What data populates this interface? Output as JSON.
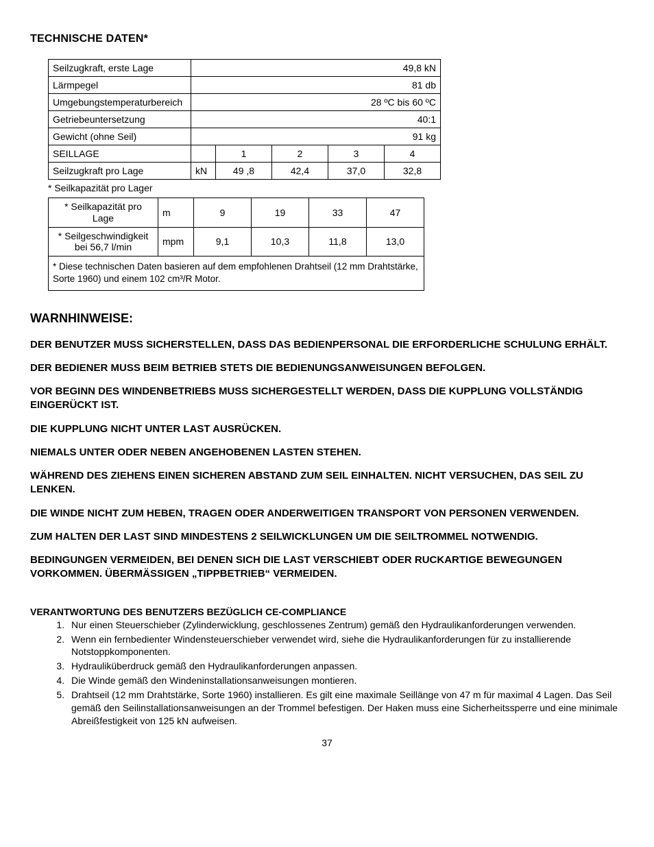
{
  "title": "TECHNISCHE DATEN*",
  "table1": {
    "rows_kv": [
      {
        "label": "Seilzugkraft, erste Lage",
        "value": "49,8 kN"
      },
      {
        "label": "Lärmpegel",
        "value": "81 db"
      },
      {
        "label": "Umgebungstemperaturbereich",
        "value": "28 ºC bis 60 ºC"
      },
      {
        "label": "Getriebeuntersetzung",
        "value": "40:1"
      },
      {
        "label": "Gewicht (ohne Seil)",
        "value": "91 kg"
      }
    ],
    "header_row": {
      "label": "SEILLAGE",
      "unit": "",
      "cols": [
        "1",
        "2",
        "3",
        "4"
      ]
    },
    "data_row": {
      "label": "Seilzugkraft pro Lage",
      "unit": "kN",
      "cols": [
        "49 ,8",
        "42,4",
        "37,0",
        "32,8"
      ]
    },
    "note": "*  Seilkapazität pro Lager",
    "col_widths": {
      "label": 208,
      "unit": 36,
      "num": 82
    }
  },
  "table2": {
    "rows": [
      {
        "label": "* Seilkapazität pro Lage",
        "unit": "m",
        "cols": [
          "9",
          "19",
          "33",
          "47"
        ]
      },
      {
        "label": "* Seilgeschwindigkeit bei 56,7 l/min",
        "unit": "mpm",
        "cols": [
          "9,1",
          "10,3",
          "11,8",
          "13,0"
        ]
      }
    ],
    "footnote": "* Diese technischen Daten basieren auf dem empfohlenen Drahtseil (12 mm Drahtstärke, Sorte 1960) und einem 102 cm³/R Motor.",
    "col_widths": {
      "label": 160,
      "unit": 52,
      "num": 84
    }
  },
  "warn_title": "WARNHINWEISE:",
  "warnings": [
    "DER BENUTZER MUSS SICHERSTELLEN, DASS DAS BEDIENPERSONAL DIE ERFORDERLICHE SCHULUNG ERHÄLT.",
    "DER BEDIENER MUSS BEIM BETRIEB STETS DIE BEDIENUNGSANWEISUNGEN BEFOLGEN.",
    "VOR BEGINN DES WINDENBETRIEBS MUSS SICHERGESTELLT WERDEN, DASS DIE KUPPLUNG VOLLSTÄNDIG EINGERÜCKT IST.",
    "DIE KUPPLUNG NICHT UNTER LAST AUSRÜCKEN.",
    "NIEMALS UNTER ODER NEBEN ANGEHOBENEN LASTEN STEHEN.",
    "WÄHREND DES ZIEHENS EINEN SICHEREN ABSTAND ZUM SEIL EINHALTEN. NICHT VERSUCHEN, DAS SEIL ZU LENKEN.",
    "DIE WINDE NICHT ZUM HEBEN, TRAGEN ODER ANDERWEITIGEN TRANSPORT VON PERSONEN VERWENDEN.",
    "ZUM HALTEN DER LAST SIND MINDESTENS 2 SEILWICKLUNGEN UM DIE SEILTROMMEL NOTWENDIG.",
    "BEDINGUNGEN VERMEIDEN, BEI DENEN SICH DIE LAST VERSCHIEBT ODER RUCKARTIGE BEWEGUNGEN VORKOMMEN. ÜBERMÄSSIGEN „TIPPBETRIEB“ VERMEIDEN."
  ],
  "resp_title": "VERANTWORTUNG DES BENUTZERS BEZÜGLICH CE-COMPLIANCE",
  "responsibilities": [
    "Nur einen Steuerschieber (Zylinderwicklung, geschlossenes Zentrum) gemäß den Hydraulikanforderungen verwenden.",
    "Wenn ein fernbedienter Windensteuerschieber verwendet wird, siehe die Hydraulikanforderungen für zu installierende Notstoppkomponenten.",
    "Hydrauliküberdruck gemäß den Hydraulikanforderungen anpassen.",
    "Die Winde gemäß den Windeninstallationsanweisungen montieren.",
    "Drahtseil (12 mm Drahtstärke, Sorte 1960) installieren. Es gilt eine maximale Seillänge von 47 m für maximal 4 Lagen. Das Seil gemäß den Seilinstallationsanweisungen an der Trommel befestigen. Der Haken muss eine Sicherheitssperre und eine minimale Abreißfestigkeit von 125 kN aufweisen."
  ],
  "page_number": "37"
}
